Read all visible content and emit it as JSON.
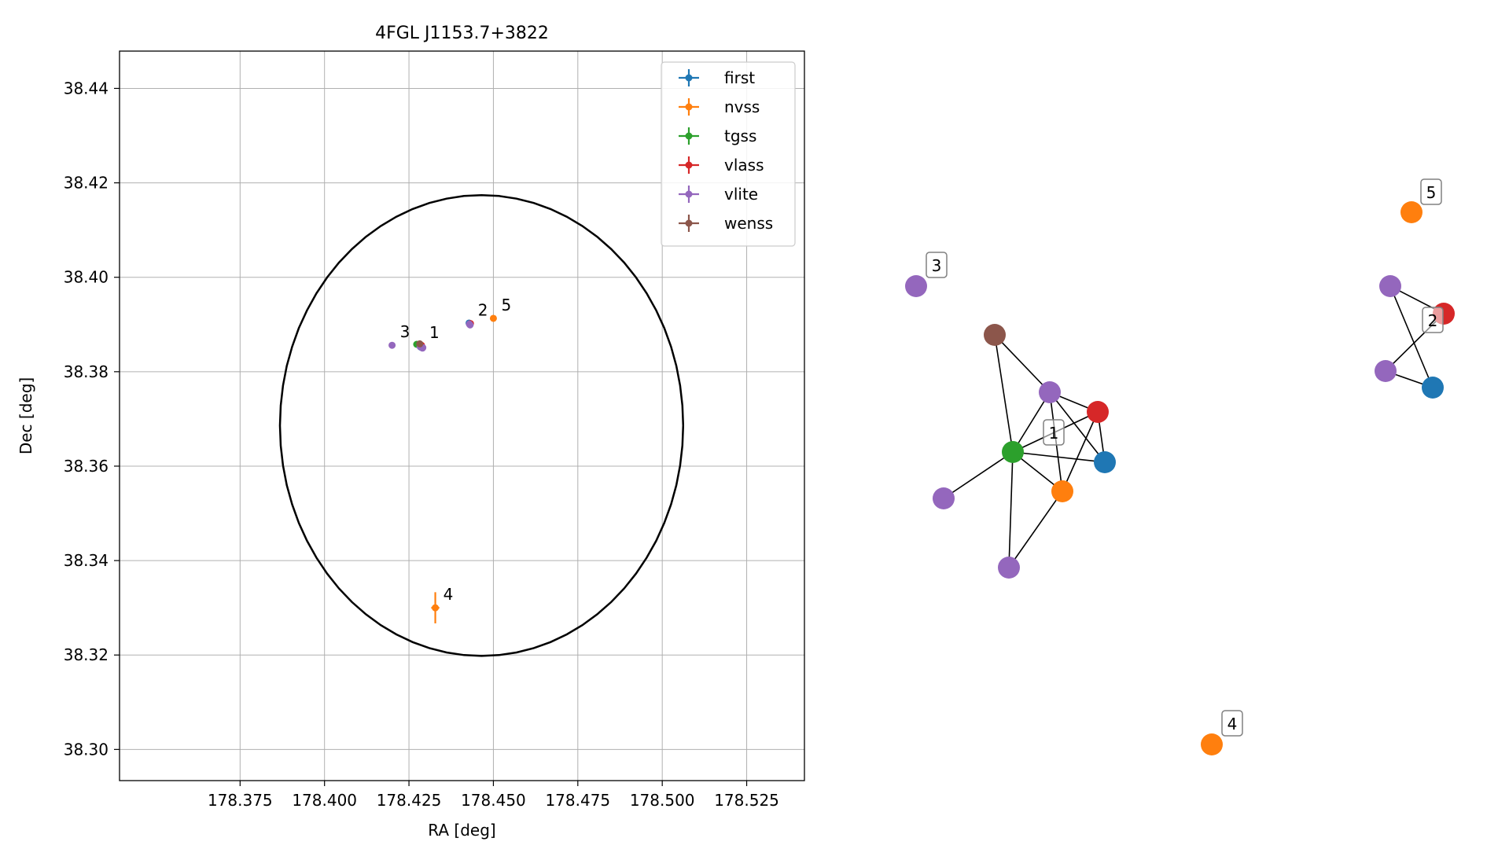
{
  "chart_data": [
    {
      "type": "scatter",
      "title": "4FGL J1153.7+3822",
      "xlabel": "RA [deg]",
      "ylabel": "Dec [deg]",
      "xlim": [
        178.3393,
        178.5421
      ],
      "ylim": [
        38.2934,
        38.4479
      ],
      "xticks": [
        178.375,
        178.4,
        178.425,
        178.45,
        178.475,
        178.5,
        178.525
      ],
      "xtick_labels": [
        "178.375",
        "178.400",
        "178.425",
        "178.450",
        "178.475",
        "178.500",
        "178.525"
      ],
      "yticks": [
        38.3,
        38.32,
        38.34,
        38.36,
        38.38,
        38.4,
        38.42,
        38.44
      ],
      "ytick_labels": [
        "38.30",
        "38.32",
        "38.34",
        "38.36",
        "38.38",
        "38.40",
        "38.42",
        "38.44"
      ],
      "grid": true,
      "legend_position": "top-right",
      "error_ellipse": {
        "center_ra": 178.4465,
        "center_dec": 38.3686,
        "semi_ra": 0.0597,
        "semi_dec": 0.0488,
        "color": "#000000"
      },
      "series": [
        {
          "name": "first",
          "color": "#1f77b4",
          "points": [
            {
              "ra": 178.4285,
              "dec": 38.3852
            },
            {
              "ra": 178.4428,
              "dec": 38.3903
            }
          ]
        },
        {
          "name": "nvss",
          "color": "#ff7f0e",
          "points": [
            {
              "ra": 178.4283,
              "dec": 38.3855,
              "ra_err": 0.0008,
              "dec_err": 0.0008
            },
            {
              "ra": 178.4328,
              "dec": 38.33,
              "ra_err": 0.0012,
              "dec_err": 0.0033
            },
            {
              "ra": 178.45,
              "dec": 38.3913,
              "ra_err": 0.0004,
              "dec_err": 0.0004
            }
          ]
        },
        {
          "name": "tgss",
          "color": "#2ca02c",
          "points": [
            {
              "ra": 178.4273,
              "dec": 38.3858,
              "ra_err": 0.0006,
              "dec_err": 0.0006
            }
          ]
        },
        {
          "name": "vlass",
          "color": "#d62728",
          "points": [
            {
              "ra": 178.4287,
              "dec": 38.3856
            },
            {
              "ra": 178.4432,
              "dec": 38.3902
            }
          ]
        },
        {
          "name": "vlite",
          "color": "#9467bd",
          "points": [
            {
              "ra": 178.42,
              "dec": 38.3856
            },
            {
              "ra": 178.4283,
              "dec": 38.3853
            },
            {
              "ra": 178.429,
              "dec": 38.385
            },
            {
              "ra": 178.4291,
              "dec": 38.3851
            },
            {
              "ra": 178.4429,
              "dec": 38.3901
            },
            {
              "ra": 178.4431,
              "dec": 38.3899
            }
          ]
        },
        {
          "name": "wenss",
          "color": "#8c564b",
          "points": [
            {
              "ra": 178.4282,
              "dec": 38.3859
            }
          ]
        }
      ],
      "group_labels": [
        {
          "label": "1",
          "ra": 178.4287,
          "dec": 38.3855
        },
        {
          "label": "2",
          "ra": 178.4431,
          "dec": 38.3902
        },
        {
          "label": "3",
          "ra": 178.42,
          "dec": 38.3856
        },
        {
          "label": "4",
          "ra": 178.4328,
          "dec": 38.33
        },
        {
          "label": "5",
          "ra": 178.45,
          "dec": 38.3913
        }
      ]
    },
    {
      "type": "network",
      "nodes": [
        {
          "id": "n3",
          "color": "#9467bd",
          "label": "3"
        },
        {
          "id": "n_wenss",
          "color": "#8c564b"
        },
        {
          "id": "n_vlite_a",
          "color": "#9467bd"
        },
        {
          "id": "n_vlass",
          "color": "#d62728"
        },
        {
          "id": "n_tgss",
          "color": "#2ca02c",
          "label": "1"
        },
        {
          "id": "n_first",
          "color": "#1f77b4"
        },
        {
          "id": "n_nvss",
          "color": "#ff7f0e"
        },
        {
          "id": "n_vlite_b",
          "color": "#9467bd"
        },
        {
          "id": "n_vlite_c",
          "color": "#9467bd"
        },
        {
          "id": "n4",
          "color": "#ff7f0e",
          "label": "4"
        },
        {
          "id": "n5",
          "color": "#ff7f0e",
          "label": "5"
        },
        {
          "id": "n2_vlite_a",
          "color": "#9467bd"
        },
        {
          "id": "n2_vlass",
          "color": "#d62728",
          "label": "2"
        },
        {
          "id": "n2_vlite_b",
          "color": "#9467bd"
        },
        {
          "id": "n2_first",
          "color": "#1f77b4"
        }
      ],
      "edges": [
        [
          "n_wenss",
          "n_vlite_a"
        ],
        [
          "n_wenss",
          "n_tgss"
        ],
        [
          "n_vlite_a",
          "n_vlass"
        ],
        [
          "n_vlite_a",
          "n_tgss"
        ],
        [
          "n_vlite_a",
          "n_first"
        ],
        [
          "n_vlite_a",
          "n_nvss"
        ],
        [
          "n_vlass",
          "n_tgss"
        ],
        [
          "n_vlass",
          "n_first"
        ],
        [
          "n_vlass",
          "n_nvss"
        ],
        [
          "n_tgss",
          "n_first"
        ],
        [
          "n_tgss",
          "n_nvss"
        ],
        [
          "n_tgss",
          "n_vlite_b"
        ],
        [
          "n_tgss",
          "n_vlite_c"
        ],
        [
          "n_nvss",
          "n_vlite_c"
        ],
        [
          "n2_vlite_a",
          "n2_vlass"
        ],
        [
          "n2_vlite_a",
          "n2_first"
        ],
        [
          "n2_vlite_b",
          "n2_vlass"
        ],
        [
          "n2_vlite_b",
          "n2_first"
        ]
      ]
    }
  ]
}
